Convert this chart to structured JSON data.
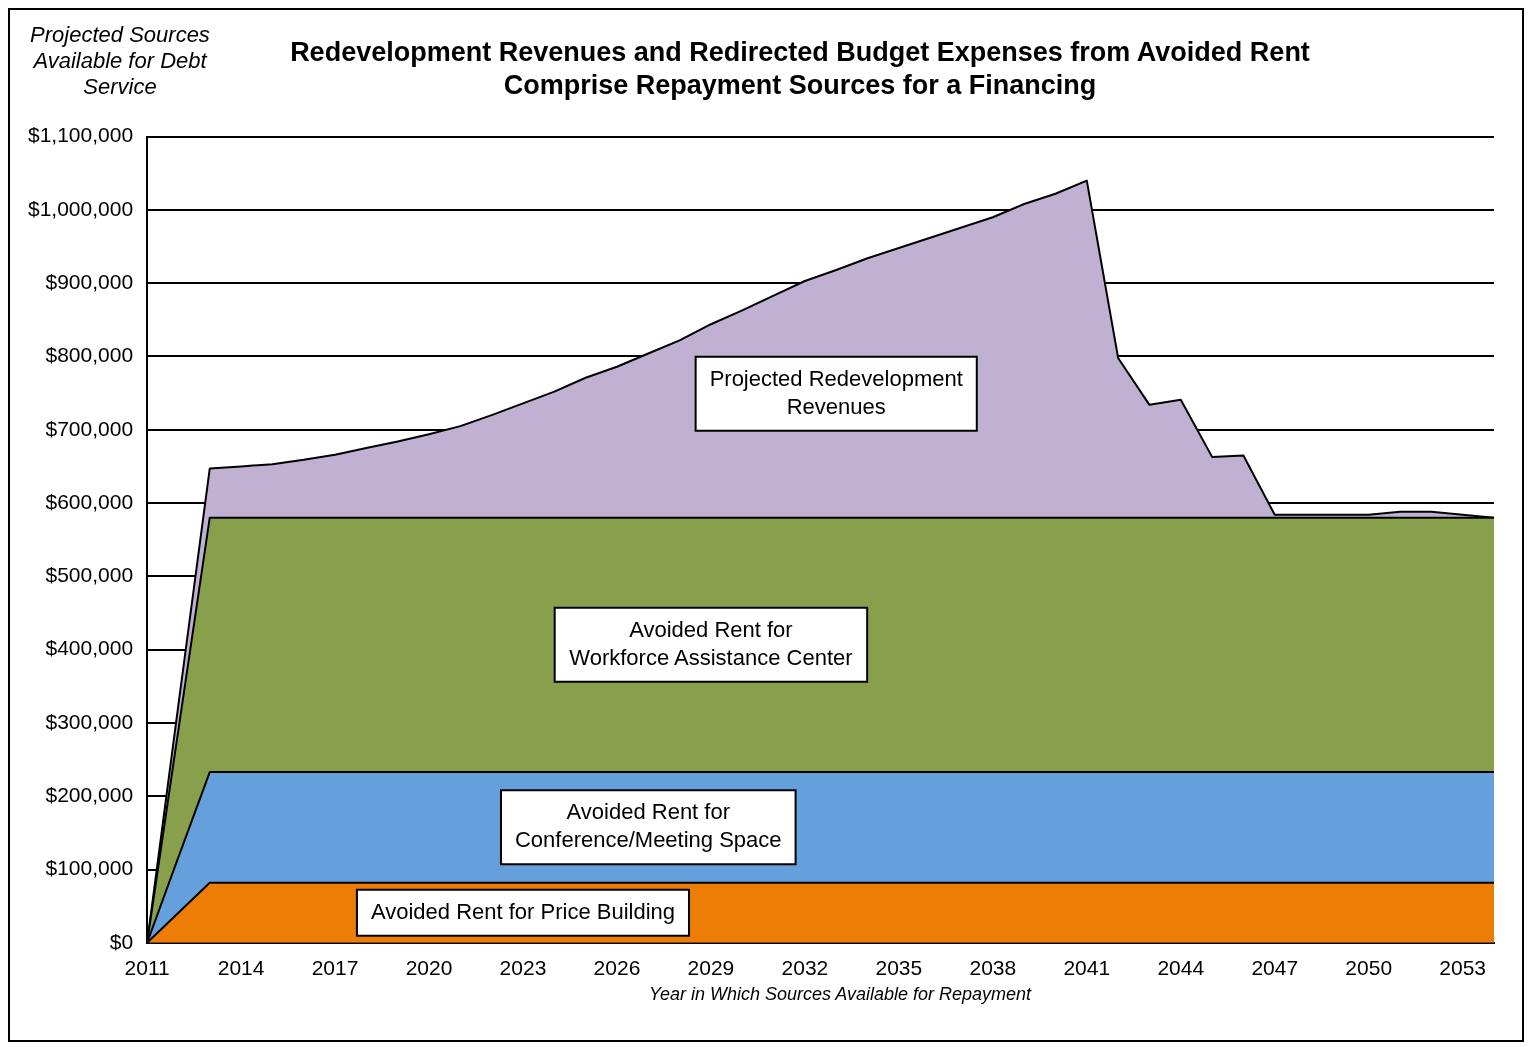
{
  "chart_data": {
    "type": "area",
    "stacked": true,
    "title": "Redevelopment Revenues and Redirected Budget Expenses from Avoided Rent Comprise Repayment Sources for a Financing",
    "ylabel": "Projected Sources Available for Debt Service",
    "xlabel": "Year in Which Sources Available for Repayment",
    "x": [
      2011,
      2012,
      2013,
      2014,
      2015,
      2016,
      2017,
      2018,
      2019,
      2020,
      2021,
      2022,
      2023,
      2024,
      2025,
      2026,
      2027,
      2028,
      2029,
      2030,
      2031,
      2032,
      2033,
      2034,
      2035,
      2036,
      2037,
      2038,
      2039,
      2040,
      2041,
      2042,
      2043,
      2044,
      2045,
      2046,
      2047,
      2048,
      2049,
      2050,
      2051,
      2052,
      2053,
      2054
    ],
    "series": [
      {
        "color": "#ed7d05",
        "values": [
          0,
          41000,
          82000,
          82000,
          82000,
          82000,
          82000,
          82000,
          82000,
          82000,
          82000,
          82000,
          82000,
          82000,
          82000,
          82000,
          82000,
          82000,
          82000,
          82000,
          82000,
          82000,
          82000,
          82000,
          82000,
          82000,
          82000,
          82000,
          82000,
          82000,
          82000,
          82000,
          82000,
          82000,
          82000,
          82000,
          82000,
          82000,
          82000,
          82000,
          82000,
          82000,
          82000,
          82000
        ]
      },
      {
        "color": "#659fdc",
        "values": [
          0,
          76000,
          151000,
          151000,
          151000,
          151000,
          151000,
          151000,
          151000,
          151000,
          151000,
          151000,
          151000,
          151000,
          151000,
          151000,
          151000,
          151000,
          151000,
          151000,
          151000,
          151000,
          151000,
          151000,
          151000,
          151000,
          151000,
          151000,
          151000,
          151000,
          151000,
          151000,
          151000,
          151000,
          151000,
          151000,
          151000,
          151000,
          151000,
          151000,
          151000,
          151000,
          151000,
          151000
        ]
      },
      {
        "color": "#88a04c",
        "values": [
          0,
          174000,
          347000,
          347000,
          347000,
          347000,
          347000,
          347000,
          347000,
          347000,
          347000,
          347000,
          347000,
          347000,
          347000,
          347000,
          347000,
          347000,
          347000,
          347000,
          347000,
          347000,
          347000,
          347000,
          347000,
          347000,
          347000,
          347000,
          347000,
          347000,
          347000,
          347000,
          347000,
          347000,
          347000,
          347000,
          347000,
          347000,
          347000,
          347000,
          347000,
          347000,
          347000,
          347000
        ]
      },
      {
        "color": "#c0b0d2",
        "values": [
          0,
          34000,
          67000,
          70000,
          73000,
          79000,
          86000,
          95000,
          104000,
          114000,
          125000,
          140000,
          156000,
          172000,
          191000,
          206000,
          224000,
          242000,
          264000,
          283000,
          303000,
          323000,
          338000,
          354000,
          368000,
          382000,
          396000,
          410000,
          428000,
          442000,
          460000,
          218000,
          154000,
          161000,
          83000,
          85000,
          4000,
          4000,
          4000,
          4000,
          8000,
          8000,
          4000,
          0
        ]
      }
    ],
    "xlim": [
      2011,
      2054
    ],
    "xticks": [
      2011,
      2014,
      2017,
      2020,
      2023,
      2026,
      2029,
      2032,
      2035,
      2038,
      2041,
      2044,
      2047,
      2050,
      2053
    ],
    "ylim": [
      0,
      1100000
    ],
    "yticks": [
      {
        "value": 0,
        "label": "$0"
      },
      {
        "value": 100000,
        "label": "$100,000"
      },
      {
        "value": 200000,
        "label": "$200,000"
      },
      {
        "value": 300000,
        "label": "$300,000"
      },
      {
        "value": 400000,
        "label": "$400,000"
      },
      {
        "value": 500000,
        "label": "$500,000"
      },
      {
        "value": 600000,
        "label": "$600,000"
      },
      {
        "value": 700000,
        "label": "$700,000"
      },
      {
        "value": 800000,
        "label": "$800,000"
      },
      {
        "value": 900000,
        "label": "$900,000"
      },
      {
        "value": 1000000,
        "label": "$1,000,000"
      },
      {
        "value": 1100000,
        "label": "$1,100,000"
      }
    ],
    "grid": "y",
    "legend": false,
    "annotations": [
      "Projected Redevelopment\nRevenues",
      "Avoided Rent for\nWorkforce Assistance Center",
      "Avoided Rent for\nConference/Meeting Space",
      "Avoided Rent for Price Building"
    ]
  }
}
